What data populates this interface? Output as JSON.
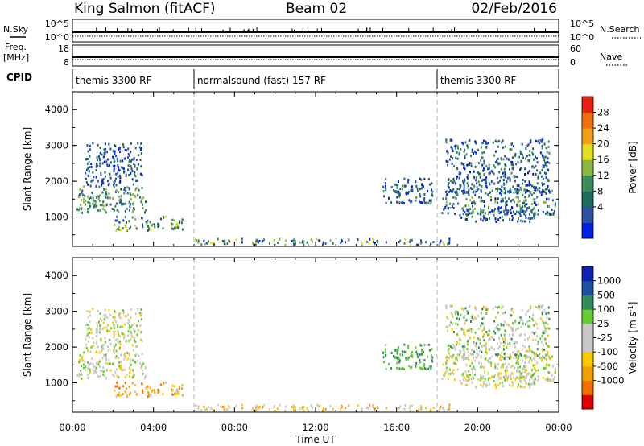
{
  "header": {
    "title_left": "King Salmon (fitACF)",
    "title_center": "Beam 02",
    "title_right": "02/Feb/2016"
  },
  "nsky_panel": {
    "label": "N.Sky",
    "left_ticks": [
      "10^5",
      "10^0"
    ],
    "right_ticks": [
      "10^5",
      "10^0"
    ],
    "right_label": "N.Search"
  },
  "freq_panel": {
    "label_line1": "Freq.",
    "label_line2": "[MHz]",
    "left_ticks": [
      "18",
      "8"
    ],
    "right_ticks": [
      "60",
      "0"
    ],
    "right_label": "Nave"
  },
  "cpid_panel": {
    "label": "CPID",
    "segments": [
      {
        "text": "themis 3300 RF",
        "start_hour": 0
      },
      {
        "text": "normalsound (fast) 157 RF",
        "start_hour": 6
      },
      {
        "text": "themis 3300 RF",
        "start_hour": 18
      }
    ]
  },
  "colors": {
    "power_scale": [
      "#0020e0",
      "#2f4fa0",
      "#1f6b5c",
      "#3a8a5a",
      "#8ab840",
      "#e0e020",
      "#f0a018",
      "#f07010",
      "#e82010"
    ],
    "velocity_scale": [
      "#e00000",
      "#f07000",
      "#f0a000",
      "#f8c800",
      "#c8c8c8",
      "#c8c8c8",
      "#66cc33",
      "#2e8b57",
      "#2050a0",
      "#1020b0"
    ],
    "dash_line": "#b0b0b0"
  },
  "chart_data": [
    {
      "type": "heatmap",
      "name": "power",
      "ylabel": "Slant Range [km]",
      "xlabel": "Time UT",
      "xlim_hours": [
        0,
        24
      ],
      "ylim": [
        180,
        4500
      ],
      "y_ticks": [
        1000,
        2000,
        3000,
        4000
      ],
      "x_ticks": [
        "00:00",
        "04:00",
        "08:00",
        "12:00",
        "16:00",
        "20:00",
        "00:00"
      ],
      "colorbar_label": "Power [dB]",
      "colorbar_ticks": [
        "28",
        "24",
        "20",
        "16",
        "12",
        "8",
        "4"
      ],
      "mode_change_hours": [
        6,
        18
      ],
      "regions": [
        {
          "t": [
            0.2,
            3.6
          ],
          "r": [
            1150,
            1900
          ],
          "color_index": [
            1,
            4
          ]
        },
        {
          "t": [
            0.6,
            3.4
          ],
          "r": [
            1900,
            3100
          ],
          "color_index": [
            0,
            2
          ]
        },
        {
          "t": [
            2.0,
            5.4
          ],
          "r": [
            650,
            1050
          ],
          "color_index": [
            1,
            5
          ]
        },
        {
          "t": [
            6.0,
            18.6
          ],
          "r": [
            250,
            420
          ],
          "color_index": [
            0,
            5
          ]
        },
        {
          "t": [
            15.3,
            17.8
          ],
          "r": [
            1400,
            2100
          ],
          "color_index": [
            0,
            3
          ]
        },
        {
          "t": [
            18.2,
            23.8
          ],
          "r": [
            1100,
            1800
          ],
          "color_index": [
            0,
            4
          ]
        },
        {
          "t": [
            18.4,
            23.5
          ],
          "r": [
            1700,
            3200
          ],
          "color_index": [
            0,
            3
          ]
        },
        {
          "t": [
            19.0,
            22.8
          ],
          "r": [
            900,
            1300
          ],
          "color_index": [
            0,
            3
          ]
        }
      ]
    },
    {
      "type": "heatmap",
      "name": "velocity",
      "ylabel": "Slant Range [km]",
      "xlabel": "Time UT",
      "xlim_hours": [
        0,
        24
      ],
      "ylim": [
        180,
        4500
      ],
      "y_ticks": [
        1000,
        2000,
        3000,
        4000
      ],
      "x_ticks": [
        "00:00",
        "04:00",
        "08:00",
        "12:00",
        "16:00",
        "20:00",
        "00:00"
      ],
      "colorbar_label": "Velocity [m s^-1]",
      "colorbar_ticks": [
        "1000",
        "500",
        "100",
        "25",
        "-25",
        "-100",
        "-500",
        "-1000"
      ],
      "mode_change_hours": [
        6,
        18
      ],
      "regions": [
        {
          "t": [
            0.2,
            3.6
          ],
          "r": [
            1150,
            1900
          ],
          "color_index": [
            3,
            6
          ]
        },
        {
          "t": [
            0.6,
            3.4
          ],
          "r": [
            1900,
            3100
          ],
          "color_index": [
            3,
            6
          ]
        },
        {
          "t": [
            2.0,
            5.4
          ],
          "r": [
            650,
            1050
          ],
          "color_index": [
            1,
            4
          ]
        },
        {
          "t": [
            6.0,
            18.6
          ],
          "r": [
            250,
            420
          ],
          "color_index": [
            2,
            5
          ]
        },
        {
          "t": [
            15.3,
            17.8
          ],
          "r": [
            1400,
            2100
          ],
          "color_index": [
            6,
            7
          ]
        },
        {
          "t": [
            18.2,
            23.8
          ],
          "r": [
            1100,
            1800
          ],
          "color_index": [
            3,
            6
          ]
        },
        {
          "t": [
            18.4,
            23.5
          ],
          "r": [
            1700,
            3200
          ],
          "color_index": [
            3,
            7
          ]
        },
        {
          "t": [
            19.0,
            22.8
          ],
          "r": [
            900,
            1300
          ],
          "color_index": [
            3,
            6
          ]
        }
      ]
    }
  ]
}
